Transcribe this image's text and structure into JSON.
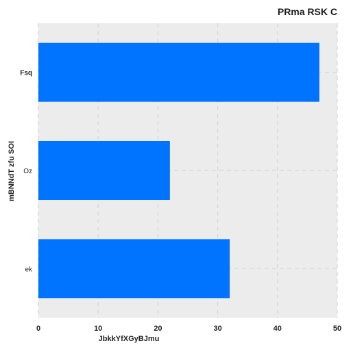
{
  "colors": {
    "background": "#ffffff",
    "plot_background": "#ececec",
    "grid": "#d6d6d6",
    "bar": "#0073ff",
    "text": "#222222"
  },
  "chart_data": {
    "type": "bar",
    "orientation": "horizontal",
    "title": "PRma RSK C",
    "xlabel": "JbkkYfXGyBJmu",
    "ylabel": "mBNNdT zfu SOI",
    "categories": [
      "Fsq",
      "Oz",
      "ek"
    ],
    "bold_categories": [
      "Fsq"
    ],
    "values": [
      47,
      22,
      32
    ],
    "xlim": [
      0,
      50
    ],
    "xticks": [
      0,
      10,
      20,
      30,
      40,
      50
    ],
    "grid": true,
    "legend": "none"
  }
}
